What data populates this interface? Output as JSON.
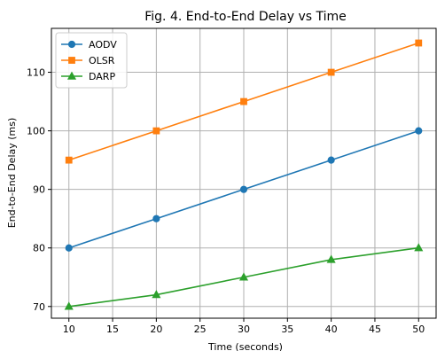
{
  "chart_data": {
    "type": "line",
    "title": "Fig. 4. End-to-End Delay vs Time",
    "xlabel": "Time (seconds)",
    "ylabel": "End-to-End Delay (ms)",
    "x": [
      10,
      20,
      30,
      40,
      50
    ],
    "xlim": [
      8,
      52
    ],
    "ylim": [
      68,
      117.5
    ],
    "xticks": [
      10,
      15,
      20,
      25,
      30,
      35,
      40,
      45,
      50
    ],
    "yticks": [
      70,
      80,
      90,
      100,
      110
    ],
    "grid": true,
    "legend_position": "upper-left",
    "series": [
      {
        "name": "AODV",
        "values": [
          80,
          85,
          90,
          95,
          100
        ],
        "color": "#1f77b4",
        "marker": "circle"
      },
      {
        "name": "OLSR",
        "values": [
          95,
          100,
          105,
          110,
          115
        ],
        "color": "#ff7f0e",
        "marker": "square"
      },
      {
        "name": "DARP",
        "values": [
          70,
          72,
          75,
          78,
          80
        ],
        "color": "#2ca02c",
        "marker": "triangle"
      }
    ]
  }
}
